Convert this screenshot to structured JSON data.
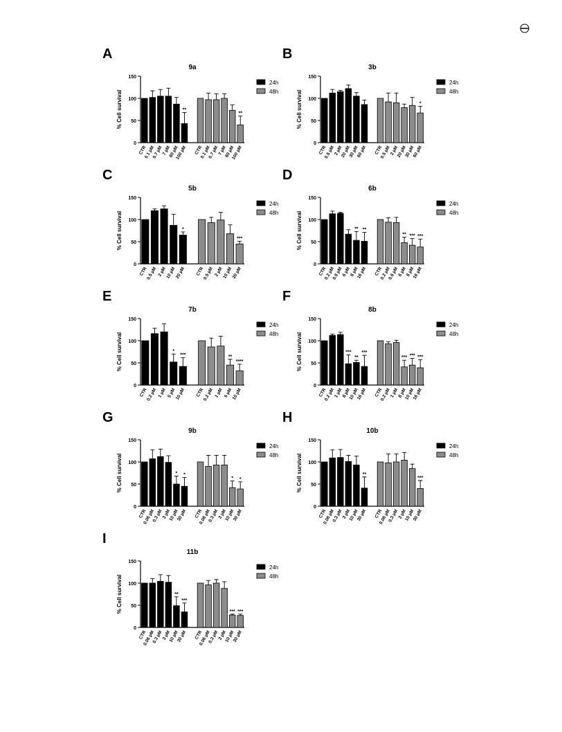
{
  "chart_data": [
    {
      "type": "bar",
      "label": "A",
      "title": "9a",
      "y_label": "% Cell survival",
      "ylim": [
        0,
        150
      ],
      "yticks": [
        0,
        50,
        100,
        150
      ],
      "categories": [
        "CTR",
        "0.1 µM",
        "0.7 µM",
        "7 µM",
        "60 µM",
        "100 µM",
        "CTR",
        "0.1 µM",
        "0.7 µM",
        "7 µM",
        "60 µM",
        "100 µM"
      ],
      "series": [
        {
          "name": "24h",
          "color": "#000000",
          "values": [
            100,
            102,
            105,
            105,
            87,
            43,
            null,
            null,
            null,
            null,
            null,
            null
          ],
          "errors": [
            null,
            15,
            15,
            18,
            15,
            25,
            null,
            null,
            null,
            null,
            null,
            null
          ],
          "annotations": [
            null,
            null,
            null,
            null,
            null,
            "**",
            null,
            null,
            null,
            null,
            null,
            null
          ]
        },
        {
          "name": "48h",
          "color": "#8c8c8c",
          "values": [
            null,
            null,
            null,
            null,
            null,
            null,
            100,
            97,
            97,
            100,
            73,
            40
          ],
          "errors": [
            null,
            null,
            null,
            null,
            null,
            null,
            null,
            15,
            13,
            10,
            12,
            20
          ],
          "annotations": [
            null,
            null,
            null,
            null,
            null,
            null,
            null,
            null,
            null,
            null,
            null,
            "**"
          ]
        }
      ]
    },
    {
      "type": "bar",
      "label": "B",
      "title": "3b",
      "y_label": "% Cell survival",
      "ylim": [
        0,
        150
      ],
      "yticks": [
        0,
        50,
        100,
        150
      ],
      "categories": [
        "CTR",
        "0.5 µM",
        "2 µM",
        "20 µM",
        "30 µM",
        "60 µM",
        "CTR",
        "0.5 µM",
        "2 µM",
        "20 µM",
        "30 µM",
        "60 µM"
      ],
      "series": [
        {
          "name": "24h",
          "color": "#000000",
          "values": [
            100,
            112,
            115,
            122,
            105,
            86,
            null,
            null,
            null,
            null,
            null,
            null
          ],
          "errors": [
            null,
            8,
            3,
            8,
            8,
            10,
            null,
            null,
            null,
            null,
            null,
            null
          ],
          "annotations": [
            null,
            null,
            null,
            null,
            null,
            null,
            null,
            null,
            null,
            null,
            null,
            null
          ]
        },
        {
          "name": "48h",
          "color": "#8c8c8c",
          "values": [
            null,
            null,
            null,
            null,
            null,
            null,
            100,
            92,
            90,
            79,
            84,
            67
          ],
          "errors": [
            null,
            null,
            null,
            null,
            null,
            null,
            null,
            20,
            22,
            8,
            18,
            15
          ],
          "annotations": [
            null,
            null,
            null,
            null,
            null,
            null,
            null,
            null,
            null,
            null,
            null,
            "*"
          ]
        }
      ]
    },
    {
      "type": "bar",
      "label": "C",
      "title": "5b",
      "y_label": "% Cell survival",
      "ylim": [
        0,
        150
      ],
      "yticks": [
        0,
        50,
        100,
        150
      ],
      "categories": [
        "CTR",
        "0.5 µM",
        "2 µM",
        "10 µM",
        "20 µM",
        "CTR",
        "0.5 µM",
        "2 µM",
        "10 µM",
        "20 µM"
      ],
      "series": [
        {
          "name": "24h",
          "color": "#000000",
          "values": [
            100,
            120,
            124,
            87,
            65,
            null,
            null,
            null,
            null,
            null
          ],
          "errors": [
            null,
            4,
            7,
            25,
            7,
            null,
            null,
            null,
            null,
            null
          ],
          "annotations": [
            null,
            null,
            null,
            null,
            "*",
            null,
            null,
            null,
            null,
            null
          ]
        },
        {
          "name": "48h",
          "color": "#8c8c8c",
          "values": [
            null,
            null,
            null,
            null,
            null,
            100,
            93,
            99,
            68,
            45
          ],
          "errors": [
            null,
            null,
            null,
            null,
            null,
            null,
            12,
            17,
            20,
            6
          ],
          "annotations": [
            null,
            null,
            null,
            null,
            null,
            null,
            null,
            null,
            null,
            "***"
          ]
        }
      ]
    },
    {
      "type": "bar",
      "label": "D",
      "title": "6b",
      "y_label": "% Cell survival",
      "ylim": [
        0,
        150
      ],
      "yticks": [
        0,
        50,
        100,
        150
      ],
      "categories": [
        "CTR",
        "0.2 µM",
        "0.6 µM",
        "6 µM",
        "8 µM",
        "16 µM",
        "CTR",
        "0.2 µM",
        "0.6 µM",
        "6 µM",
        "8 µM",
        "16 µM"
      ],
      "series": [
        {
          "name": "24h",
          "color": "#000000",
          "values": [
            100,
            113,
            114,
            67,
            53,
            51,
            null,
            null,
            null,
            null,
            null,
            null
          ],
          "errors": [
            null,
            6,
            2,
            10,
            20,
            20,
            null,
            null,
            null,
            null,
            null,
            null
          ],
          "annotations": [
            null,
            null,
            null,
            null,
            "**",
            "**",
            null,
            null,
            null,
            null,
            null,
            null
          ]
        },
        {
          "name": "48h",
          "color": "#8c8c8c",
          "values": [
            null,
            null,
            null,
            null,
            null,
            null,
            100,
            94,
            93,
            48,
            42,
            38
          ],
          "errors": [
            null,
            null,
            null,
            null,
            null,
            null,
            null,
            10,
            12,
            12,
            15,
            18
          ],
          "annotations": [
            null,
            null,
            null,
            null,
            null,
            null,
            null,
            null,
            null,
            "**",
            "***",
            "***"
          ]
        }
      ]
    },
    {
      "type": "bar",
      "label": "E",
      "title": "7b",
      "y_label": "% Cell survival",
      "ylim": [
        0,
        150
      ],
      "yticks": [
        0,
        50,
        100,
        150
      ],
      "categories": [
        "CTR",
        "0.2 µM",
        "1 µM",
        "5 µM",
        "10 µM",
        "CTR",
        "0.2 µM",
        "1 µM",
        "5 µM",
        "10 µM"
      ],
      "series": [
        {
          "name": "24h",
          "color": "#000000",
          "values": [
            100,
            116,
            120,
            52,
            42,
            null,
            null,
            null,
            null,
            null
          ],
          "errors": [
            null,
            12,
            18,
            18,
            20,
            null,
            null,
            null,
            null,
            null
          ],
          "annotations": [
            null,
            null,
            null,
            "*",
            "***",
            null,
            null,
            null,
            null,
            null
          ]
        },
        {
          "name": "48h",
          "color": "#8c8c8c",
          "values": [
            null,
            null,
            null,
            null,
            null,
            100,
            86,
            88,
            45,
            32
          ],
          "errors": [
            null,
            null,
            null,
            null,
            null,
            null,
            20,
            22,
            13,
            15
          ],
          "annotations": [
            null,
            null,
            null,
            null,
            null,
            null,
            null,
            null,
            "**",
            "****"
          ]
        }
      ]
    },
    {
      "type": "bar",
      "label": "F",
      "title": "8b",
      "y_label": "% Cell survival",
      "ylim": [
        0,
        150
      ],
      "yticks": [
        0,
        50,
        100,
        150
      ],
      "categories": [
        "CTR",
        "0.2 µM",
        "1 µM",
        "8 µM",
        "10 µM",
        "16 µM",
        "CTR",
        "0.2 µM",
        "1 µM",
        "8 µM",
        "10 µM",
        "16 µM"
      ],
      "series": [
        {
          "name": "24h",
          "color": "#000000",
          "values": [
            100,
            112,
            114,
            48,
            51,
            42,
            null,
            null,
            null,
            null,
            null,
            null
          ],
          "errors": [
            null,
            3,
            5,
            20,
            5,
            25,
            null,
            null,
            null,
            null,
            null,
            null
          ],
          "annotations": [
            null,
            null,
            null,
            "***",
            "**",
            "***",
            null,
            null,
            null,
            null,
            null,
            null
          ]
        },
        {
          "name": "48h",
          "color": "#8c8c8c",
          "values": [
            null,
            null,
            null,
            null,
            null,
            null,
            100,
            93,
            96,
            41,
            45,
            39
          ],
          "errors": [
            null,
            null,
            null,
            null,
            null,
            null,
            null,
            5,
            5,
            15,
            15,
            18
          ],
          "annotations": [
            null,
            null,
            null,
            null,
            null,
            null,
            null,
            null,
            null,
            "***",
            "***",
            "***"
          ]
        }
      ]
    },
    {
      "type": "bar",
      "label": "G",
      "title": "9b",
      "y_label": "% Cell survival",
      "ylim": [
        0,
        150
      ],
      "yticks": [
        0,
        50,
        100,
        150
      ],
      "categories": [
        "CTR",
        "0.06 µM",
        "0.3 µM",
        "3 µM",
        "10 µM",
        "30 µM",
        "CTR",
        "0.06 µM",
        "0.3 µM",
        "3 µM",
        "10 µM",
        "30 µM"
      ],
      "series": [
        {
          "name": "24h",
          "color": "#000000",
          "values": [
            100,
            107,
            112,
            99,
            50,
            45,
            null,
            null,
            null,
            null,
            null,
            null
          ],
          "errors": [
            null,
            20,
            17,
            15,
            18,
            20,
            null,
            null,
            null,
            null,
            null,
            null
          ],
          "annotations": [
            null,
            null,
            null,
            null,
            "*",
            "*",
            null,
            null,
            null,
            null,
            null,
            null
          ]
        },
        {
          "name": "48h",
          "color": "#8c8c8c",
          "values": [
            null,
            null,
            null,
            null,
            null,
            null,
            100,
            90,
            93,
            93,
            42,
            39
          ],
          "errors": [
            null,
            null,
            null,
            null,
            null,
            null,
            null,
            25,
            22,
            22,
            15,
            16
          ],
          "annotations": [
            null,
            null,
            null,
            null,
            null,
            null,
            null,
            null,
            null,
            null,
            "*",
            "*"
          ]
        }
      ]
    },
    {
      "type": "bar",
      "label": "H",
      "title": "10b",
      "y_label": "% Cell survival",
      "ylim": [
        0,
        150
      ],
      "yticks": [
        0,
        50,
        100,
        150
      ],
      "categories": [
        "CTR",
        "0.06 µM",
        "0.3 µM",
        "3 µM",
        "10 µM",
        "30 µM",
        "CTR",
        "0.06 µM",
        "0.3 µM",
        "3 µM",
        "10 µM",
        "30 µM"
      ],
      "series": [
        {
          "name": "24h",
          "color": "#000000",
          "values": [
            100,
            109,
            110,
            101,
            93,
            41,
            null,
            null,
            null,
            null,
            null,
            null
          ],
          "errors": [
            null,
            18,
            18,
            14,
            20,
            25,
            null,
            null,
            null,
            null,
            null,
            null
          ],
          "annotations": [
            null,
            null,
            null,
            null,
            null,
            "**",
            null,
            null,
            null,
            null,
            null,
            null
          ]
        },
        {
          "name": "48h",
          "color": "#8c8c8c",
          "values": [
            null,
            null,
            null,
            null,
            null,
            null,
            100,
            98,
            100,
            104,
            85,
            40
          ],
          "errors": [
            null,
            null,
            null,
            null,
            null,
            null,
            null,
            20,
            18,
            17,
            10,
            18
          ],
          "annotations": [
            null,
            null,
            null,
            null,
            null,
            null,
            null,
            null,
            null,
            null,
            null,
            "***"
          ]
        }
      ]
    },
    {
      "type": "bar",
      "label": "I",
      "title": "11b",
      "y_label": "% Cell survival",
      "ylim": [
        0,
        150
      ],
      "yticks": [
        0,
        50,
        100,
        150
      ],
      "categories": [
        "CTR",
        "0.06 µM",
        "0.3 µM",
        "3 µM",
        "10 µM",
        "30 µM",
        "CTR",
        "0.06 µM",
        "0.3 µM",
        "3 µM",
        "10 µM",
        "30 µM"
      ],
      "series": [
        {
          "name": "24h",
          "color": "#000000",
          "values": [
            100,
            100,
            104,
            102,
            49,
            35,
            null,
            null,
            null,
            null,
            null,
            null
          ],
          "errors": [
            null,
            10,
            15,
            15,
            20,
            20,
            null,
            null,
            null,
            null,
            null,
            null
          ],
          "annotations": [
            null,
            null,
            null,
            null,
            "**",
            "***",
            null,
            null,
            null,
            null,
            null,
            null
          ]
        },
        {
          "name": "48h",
          "color": "#8c8c8c",
          "values": [
            null,
            null,
            null,
            null,
            null,
            null,
            100,
            96,
            100,
            88,
            28,
            27
          ],
          "errors": [
            null,
            null,
            null,
            null,
            null,
            null,
            null,
            10,
            8,
            15,
            2,
            3
          ],
          "annotations": [
            null,
            null,
            null,
            null,
            null,
            null,
            null,
            null,
            null,
            null,
            "***",
            "***"
          ]
        }
      ]
    }
  ]
}
